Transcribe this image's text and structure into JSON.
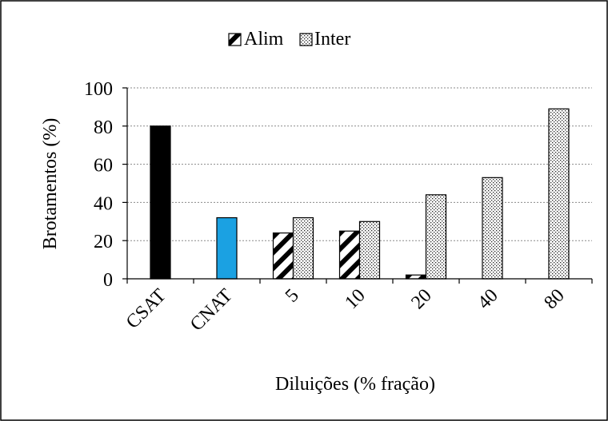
{
  "chart_data": {
    "type": "bar",
    "categories": [
      "CSAT",
      "CNAT",
      "5",
      "10",
      "20",
      "40",
      "80"
    ],
    "series": [
      {
        "name": "Alim",
        "values": [
          null,
          null,
          24,
          25,
          2,
          null,
          null
        ]
      },
      {
        "name": "Inter",
        "values": [
          null,
          null,
          32,
          30,
          44,
          53,
          89
        ]
      }
    ],
    "controls": [
      {
        "category": "CSAT",
        "value": 80,
        "color": "#000000"
      },
      {
        "category": "CNAT",
        "value": 32,
        "color": "#1ba1e2"
      }
    ],
    "title": "",
    "xlabel": "Diluições (% fração)",
    "ylabel": "Brotamentos (%)",
    "ylim": [
      0,
      100
    ],
    "yticks": [
      0,
      20,
      40,
      60,
      80,
      100
    ],
    "grid": true,
    "legend_position": "top-center",
    "colors": {
      "alim_pattern": "diagonal-hatch",
      "inter_pattern": "dots"
    }
  }
}
